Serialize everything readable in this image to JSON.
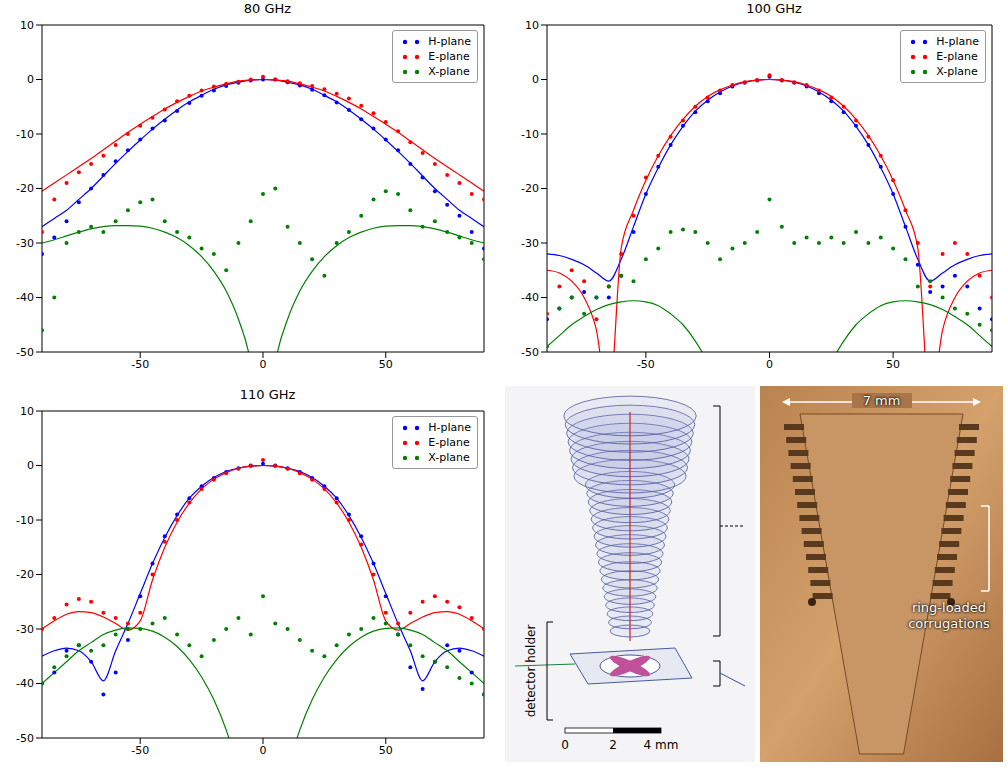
{
  "chart_data": [
    {
      "type": "scatter",
      "title": "80 GHz",
      "legend": "upper right",
      "x": [
        -90,
        -85,
        -80,
        -75,
        -70,
        -65,
        -60,
        -55,
        -50,
        -45,
        -40,
        -35,
        -30,
        -25,
        -20,
        -15,
        -10,
        -5,
        0,
        5,
        10,
        15,
        20,
        25,
        30,
        35,
        40,
        45,
        50,
        55,
        60,
        65,
        70,
        75,
        80,
        85,
        90
      ],
      "xlim": [
        -90,
        90
      ],
      "xticks": [
        -50,
        0,
        50
      ],
      "ylim": [
        -50,
        10
      ],
      "yticks": [
        -50,
        -40,
        -30,
        -20,
        -10,
        0,
        10
      ],
      "series": [
        {
          "name": "H-plane",
          "color": "#0000ff",
          "marker": "o",
          "line_style": "solid",
          "values": [
            -32,
            -29,
            -26,
            -22.5,
            -20,
            -17.5,
            -15,
            -13,
            -11,
            -9,
            -7.5,
            -5.8,
            -4.3,
            -3,
            -2,
            -1.2,
            -0.6,
            -0.2,
            0,
            0,
            -0.5,
            -1.1,
            -1.9,
            -2.9,
            -4.2,
            -5.6,
            -7.3,
            -9,
            -11,
            -13,
            -15.5,
            -18,
            -20.5,
            -23,
            -25,
            -28,
            -31
          ],
          "fit": [
            -27,
            -25.5,
            -24,
            -22,
            -20,
            -17.7,
            -15.4,
            -13.2,
            -11.1,
            -9.1,
            -7.3,
            -5.6,
            -4.1,
            -2.9,
            -1.8,
            -1,
            -0.5,
            -0.1,
            0,
            -0.1,
            -0.5,
            -1,
            -1.8,
            -2.9,
            -4.1,
            -5.6,
            -7.3,
            -9.1,
            -11.1,
            -13.2,
            -15.4,
            -17.7,
            -20,
            -22,
            -24,
            -25.5,
            -27
          ]
        },
        {
          "name": "E-plane",
          "color": "#ff0000",
          "marker": "o",
          "line_style": "solid",
          "values": [
            -28,
            -22,
            -19,
            -17,
            -15.5,
            -14,
            -12,
            -10,
            -8.5,
            -7,
            -5.5,
            -4,
            -3,
            -2,
            -1.3,
            -0.8,
            -0.4,
            0,
            0.5,
            0,
            -0.3,
            -0.7,
            -1.2,
            -1.8,
            -2.6,
            -3.5,
            -4.8,
            -6.2,
            -7.8,
            -9.5,
            -11.5,
            -13.5,
            -15.5,
            -17.5,
            -19,
            -21,
            -22
          ],
          "fit": [
            -20.5,
            -19,
            -17.5,
            -16,
            -14.5,
            -12.9,
            -11.3,
            -9.7,
            -8.2,
            -6.8,
            -5.4,
            -4.2,
            -3.1,
            -2.1,
            -1.4,
            -0.8,
            -0.3,
            -0.1,
            0,
            -0.1,
            -0.3,
            -0.8,
            -1.4,
            -2.1,
            -3.1,
            -4.2,
            -5.4,
            -6.8,
            -8.2,
            -9.7,
            -11.3,
            -12.9,
            -14.5,
            -16,
            -17.5,
            -19,
            -20.5
          ]
        },
        {
          "name": "X-plane",
          "color": "#008000",
          "marker": "o",
          "line_style": "solid",
          "values": [
            -46,
            -40,
            -30,
            -28,
            -27,
            -28,
            -26,
            -24,
            -22.5,
            -22,
            -26,
            -28,
            -29,
            -31,
            -32,
            -35,
            -30,
            -26,
            -21,
            -20,
            -27,
            -30,
            -33,
            -36,
            -30,
            -28,
            -25,
            -22,
            -20.5,
            -21,
            -24,
            -27,
            -26,
            -28,
            -29,
            -30,
            -33
          ],
          "fit": [
            -30,
            -29.4,
            -28.7,
            -28,
            -27.4,
            -27,
            -26.8,
            -26.8,
            -26.9,
            -27.3,
            -28,
            -29,
            -30.5,
            -32.5,
            -35.2,
            -38.8,
            -44,
            -52,
            -70,
            -52,
            -44,
            -38.8,
            -35.2,
            -32.5,
            -30.5,
            -29,
            -28,
            -27.3,
            -26.9,
            -26.8,
            -26.8,
            -27,
            -27.4,
            -28,
            -28.7,
            -29.4,
            -30
          ]
        }
      ]
    },
    {
      "type": "scatter",
      "title": "100 GHz",
      "legend": "upper right",
      "x": [
        -90,
        -85,
        -80,
        -75,
        -70,
        -65,
        -60,
        -55,
        -50,
        -45,
        -40,
        -35,
        -30,
        -25,
        -20,
        -15,
        -10,
        -5,
        0,
        5,
        10,
        15,
        20,
        25,
        30,
        35,
        40,
        45,
        50,
        55,
        60,
        65,
        70,
        75,
        80,
        85,
        90
      ],
      "xlim": [
        -90,
        90
      ],
      "xticks": [
        -50,
        0,
        50
      ],
      "ylim": [
        -50,
        10
      ],
      "yticks": [
        -50,
        -40,
        -30,
        -20,
        -10,
        0,
        10
      ],
      "series": [
        {
          "name": "H-plane",
          "color": "#0000ff",
          "marker": "o",
          "line_style": "solid",
          "values": [
            -44,
            -42,
            -40,
            -39,
            -40,
            -40,
            -36,
            -28,
            -21,
            -16,
            -12,
            -8.5,
            -6,
            -4,
            -2.5,
            -1.3,
            -0.6,
            -0.2,
            0.5,
            -0.2,
            -0.6,
            -1.3,
            -2.5,
            -4,
            -6,
            -8.5,
            -12,
            -16,
            -21,
            -27,
            -34,
            -39,
            -38,
            -36,
            -38,
            -42,
            -44
          ],
          "fit": [
            -32,
            -32.3,
            -33,
            -34,
            -35.5,
            -37,
            -33,
            -27,
            -21,
            -16.2,
            -12,
            -8.6,
            -5.8,
            -3.8,
            -2.3,
            -1.2,
            -0.5,
            -0.1,
            0,
            -0.1,
            -0.5,
            -1.2,
            -2.3,
            -3.8,
            -5.8,
            -8.6,
            -12,
            -16.2,
            -21,
            -27,
            -33,
            -37,
            -35.5,
            -34,
            -33,
            -32.3,
            -32
          ]
        },
        {
          "name": "E-plane",
          "color": "#ff0000",
          "marker": "o",
          "line_style": "solid",
          "values": [
            -43,
            -38,
            -35,
            -37,
            -44,
            -38,
            -32,
            -25,
            -18,
            -14,
            -10.5,
            -7.5,
            -5,
            -3.3,
            -2,
            -1,
            -0.5,
            -0.1,
            0.8,
            -0.1,
            -0.5,
            -1,
            -2,
            -3.3,
            -5,
            -7.5,
            -10.5,
            -14,
            -18.5,
            -24,
            -30,
            -38,
            -32,
            -30,
            -32,
            -36,
            -40
          ],
          "fit": [
            -35,
            -35.5,
            -37,
            -40,
            -46,
            -60,
            -31,
            -24,
            -18.5,
            -14,
            -10.3,
            -7.3,
            -4.9,
            -3.1,
            -1.9,
            -1,
            -0.4,
            -0.1,
            0,
            -0.1,
            -0.4,
            -1,
            -1.9,
            -3.1,
            -4.9,
            -7.3,
            -10.3,
            -14,
            -18.5,
            -24,
            -31,
            -60,
            -46,
            -40,
            -37,
            -35.5,
            -35
          ]
        },
        {
          "name": "X-plane",
          "color": "#008000",
          "marker": "o",
          "line_style": "solid",
          "values": [
            -49,
            -42,
            -40,
            -43,
            -40,
            -38,
            -36,
            -37,
            -33,
            -31,
            -28,
            -27.5,
            -28,
            -30,
            -33,
            -31,
            -30,
            -28,
            -22,
            -27,
            -30,
            -29,
            -30,
            -29,
            -30,
            -28,
            -30,
            -29,
            -31,
            -33,
            -38,
            -37,
            -40,
            -42,
            -43,
            -45,
            -46
          ],
          "fit": [
            -49,
            -47,
            -45,
            -43.5,
            -42.2,
            -41.3,
            -40.8,
            -40.6,
            -40.8,
            -41.5,
            -43,
            -45,
            -48,
            -52,
            -58,
            -65,
            -70,
            -70,
            -70,
            -70,
            -70,
            -65,
            -58,
            -52,
            -48,
            -45,
            -43,
            -41.5,
            -40.8,
            -40.6,
            -40.8,
            -41.3,
            -42.2,
            -43.5,
            -45,
            -47,
            -49
          ]
        }
      ]
    },
    {
      "type": "scatter",
      "title": "110 GHz",
      "legend": "upper right",
      "x": [
        -90,
        -85,
        -80,
        -75,
        -70,
        -65,
        -60,
        -55,
        -50,
        -45,
        -40,
        -35,
        -30,
        -25,
        -20,
        -15,
        -10,
        -5,
        0,
        5,
        10,
        15,
        20,
        25,
        30,
        35,
        40,
        45,
        50,
        55,
        60,
        65,
        70,
        75,
        80,
        85,
        90
      ],
      "xlim": [
        -90,
        90
      ],
      "xticks": [
        -50,
        0,
        50
      ],
      "ylim": [
        -50,
        10
      ],
      "yticks": [
        -50,
        -40,
        -30,
        -20,
        -10,
        0,
        10
      ],
      "series": [
        {
          "name": "H-plane",
          "color": "#0000ff",
          "marker": "o",
          "line_style": "solid",
          "values": [
            -40,
            -38,
            -34,
            -33,
            -36,
            -42,
            -38,
            -32,
            -24,
            -18,
            -13,
            -9,
            -6,
            -3.8,
            -2.3,
            -1.2,
            -0.5,
            0,
            0.3,
            0,
            -0.5,
            -1.2,
            -2.3,
            -3.8,
            -6,
            -9,
            -13,
            -18,
            -24,
            -31,
            -37,
            -41,
            -36,
            -33,
            -34,
            -38,
            -42
          ],
          "fit": [
            -35,
            -34,
            -33.5,
            -34,
            -36,
            -39.5,
            -34,
            -29,
            -23.5,
            -18,
            -13.2,
            -9.2,
            -6,
            -3.8,
            -2.2,
            -1.1,
            -0.5,
            -0.1,
            0,
            -0.1,
            -0.5,
            -1.1,
            -2.2,
            -3.8,
            -6,
            -9.2,
            -13.2,
            -18,
            -23.5,
            -29,
            -34,
            -39.5,
            -36,
            -34,
            -33.5,
            -34,
            -35
          ]
        },
        {
          "name": "E-plane",
          "color": "#ff0000",
          "marker": "o",
          "line_style": "solid",
          "values": [
            -30,
            -28,
            -25.5,
            -24.5,
            -25,
            -27,
            -28,
            -29,
            -27,
            -20,
            -14,
            -10,
            -6.8,
            -4.3,
            -2.6,
            -1.4,
            -0.6,
            -0.1,
            1,
            -0.1,
            -0.6,
            -1.4,
            -2.6,
            -4.3,
            -6.8,
            -10,
            -14.5,
            -20,
            -27,
            -29,
            -27,
            -25,
            -24,
            -25,
            -26,
            -28,
            -30
          ],
          "fit": [
            -30,
            -28.5,
            -27.3,
            -26.8,
            -27,
            -27.8,
            -29,
            -30.2,
            -28.5,
            -21,
            -15,
            -10.4,
            -6.9,
            -4.3,
            -2.5,
            -1.3,
            -0.5,
            -0.1,
            0,
            -0.1,
            -0.5,
            -1.3,
            -2.5,
            -4.3,
            -6.9,
            -10.4,
            -15,
            -21,
            -28.5,
            -30.2,
            -29,
            -27.8,
            -27,
            -26.8,
            -27.3,
            -28.5,
            -30
          ]
        },
        {
          "name": "X-plane",
          "color": "#008000",
          "marker": "o",
          "line_style": "solid",
          "values": [
            -40,
            -37,
            -35,
            -33,
            -34,
            -33,
            -31,
            -30,
            -30,
            -29,
            -28,
            -31,
            -33,
            -35,
            -32,
            -30,
            -28,
            -31,
            -24,
            -29,
            -30,
            -32,
            -34,
            -35,
            -33,
            -31,
            -30,
            -28,
            -29,
            -31,
            -33,
            -35,
            -36,
            -37,
            -39,
            -40,
            -42
          ],
          "fit": [
            -40,
            -38,
            -36,
            -34,
            -32.5,
            -31,
            -30.2,
            -29.8,
            -29.9,
            -30.4,
            -31.5,
            -33.2,
            -35.6,
            -38.8,
            -43,
            -48.5,
            -56,
            -65,
            -70,
            -65,
            -56,
            -48.5,
            -43,
            -38.8,
            -35.6,
            -33.2,
            -31.5,
            -30.4,
            -29.9,
            -29.8,
            -30.2,
            -31,
            -32.5,
            -34,
            -36,
            -38,
            -40
          ]
        }
      ]
    }
  ],
  "model": {
    "detector_label": "detector holder",
    "scale_bar": [
      {
        "value": 0,
        "label": "0"
      },
      {
        "value": 2,
        "label": "2"
      },
      {
        "value": 4,
        "label": "4 mm"
      }
    ]
  },
  "photo": {
    "width_label": "7 mm",
    "annotation": "ring-loaded corrugations"
  }
}
